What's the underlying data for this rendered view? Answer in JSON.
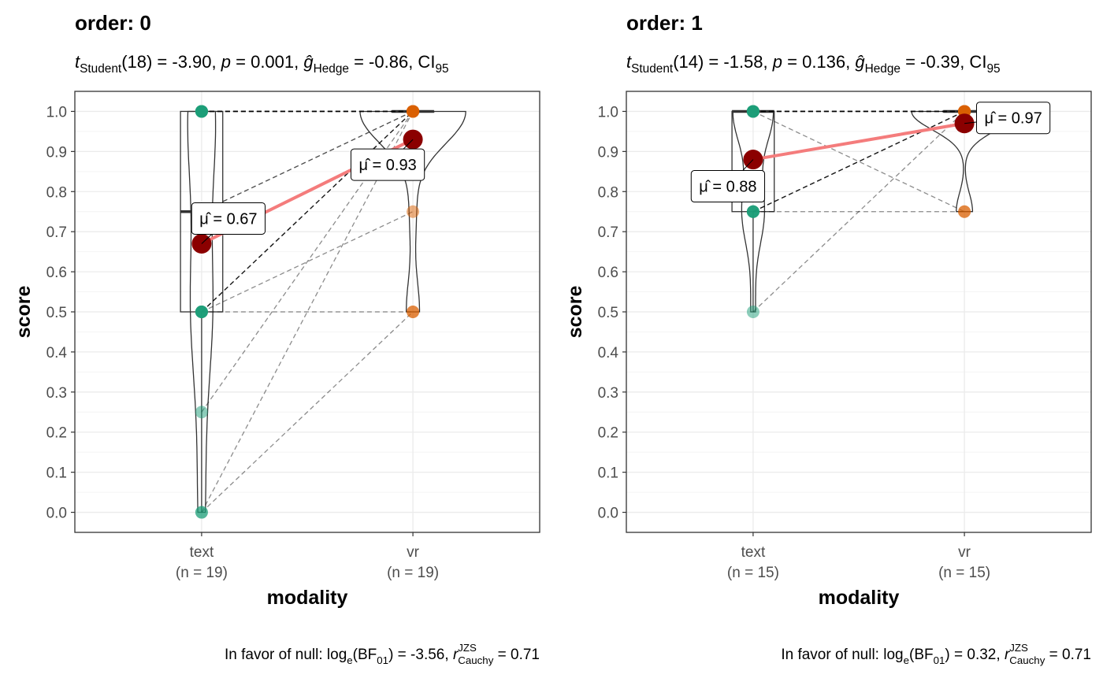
{
  "chart_data": [
    {
      "type": "violin",
      "title": "order: 0",
      "subtitle": [
        {
          "text": "t",
          "style": "italic"
        },
        {
          "text": "Student",
          "style": "sub"
        },
        {
          "text": "(18) = -3.90, "
        },
        {
          "text": "p",
          "style": "italic"
        },
        {
          "text": " = 0.001, "
        },
        {
          "text": "ĝ",
          "style": "italic"
        },
        {
          "text": "Hedge",
          "style": "sub"
        },
        {
          "text": " = -0.86, CI"
        },
        {
          "text": "95",
          "style": "sub"
        }
      ],
      "caption": [
        {
          "text": "In favor of null: log"
        },
        {
          "text": "e",
          "style": "sub"
        },
        {
          "text": "(BF"
        },
        {
          "text": "01",
          "style": "sub"
        },
        {
          "text": ") = -3.56, "
        },
        {
          "text": "r",
          "style": "italic"
        },
        {
          "text": "JZS",
          "style": "sup"
        },
        {
          "text": "Cauchy",
          "style": "sub"
        },
        {
          "text": " = 0.71"
        }
      ],
      "xlabel": "modality",
      "ylabel": "score",
      "categories": [
        "text",
        "vr"
      ],
      "n_labels": [
        "(n = 19)",
        "(n = 19)"
      ],
      "groups": [
        {
          "color": "#1b9e77",
          "values": [
            1,
            1,
            1,
            1,
            1,
            1,
            1,
            1,
            0.75,
            0.75,
            0.5,
            0.5,
            0.5,
            0.5,
            0.5,
            0.5,
            0.25,
            0,
            0
          ]
        },
        {
          "color": "#d95f02",
          "values": [
            1,
            1,
            1,
            1,
            1,
            1,
            1,
            1,
            1,
            1,
            1,
            0.75,
            1,
            1,
            0.5,
            1,
            1,
            1,
            0.5
          ]
        }
      ],
      "means": [
        0.67,
        0.93
      ],
      "mean_labels": [
        "μ̂ = 0.67",
        "μ̂ = 0.93"
      ],
      "mean_color": "#8b0000",
      "mean_line_color": "#f47c7c",
      "ylim": [
        -0.05,
        1.05
      ],
      "yticks": [
        {
          "value": 0,
          "label": "0.0"
        },
        0.1,
        0.2,
        0.3,
        0.4,
        0.5,
        0.6,
        0.7,
        0.8,
        0.9,
        {
          "value": 1,
          "label": "1.0"
        }
      ],
      "grid": true
    },
    {
      "type": "violin",
      "title": "order: 1",
      "subtitle": [
        {
          "text": "t",
          "style": "italic"
        },
        {
          "text": "Student",
          "style": "sub"
        },
        {
          "text": "(14) = -1.58, "
        },
        {
          "text": "p",
          "style": "italic"
        },
        {
          "text": " = 0.136, "
        },
        {
          "text": "ĝ",
          "style": "italic"
        },
        {
          "text": "Hedge",
          "style": "sub"
        },
        {
          "text": " = -0.39, CI"
        },
        {
          "text": "95",
          "style": "sub"
        }
      ],
      "caption": [
        {
          "text": "In favor of null: log"
        },
        {
          "text": "e",
          "style": "sub"
        },
        {
          "text": "(BF"
        },
        {
          "text": "01",
          "style": "sub"
        },
        {
          "text": ") = 0.32, "
        },
        {
          "text": "r",
          "style": "italic"
        },
        {
          "text": "JZS",
          "style": "sup"
        },
        {
          "text": "Cauchy",
          "style": "sub"
        },
        {
          "text": " = 0.71"
        }
      ],
      "xlabel": "modality",
      "ylabel": "score",
      "categories": [
        "text",
        "vr"
      ],
      "n_labels": [
        "(n = 15)",
        "(n = 15)"
      ],
      "groups": [
        {
          "color": "#1b9e77",
          "values": [
            1,
            1,
            1,
            1,
            1,
            1,
            1,
            1,
            1,
            0.75,
            0.75,
            0.75,
            0.75,
            0.75,
            0.5
          ]
        },
        {
          "color": "#d95f02",
          "values": [
            1,
            1,
            1,
            1,
            1,
            1,
            1,
            1,
            0.75,
            1,
            1,
            1,
            1,
            0.75,
            1
          ]
        }
      ],
      "means": [
        0.88,
        0.97
      ],
      "mean_labels": [
        "μ̂ = 0.88",
        "μ̂ = 0.97"
      ],
      "mean_color": "#8b0000",
      "mean_line_color": "#f47c7c",
      "ylim": [
        -0.05,
        1.05
      ],
      "yticks": [
        {
          "value": 0,
          "label": "0.0"
        },
        0.1,
        0.2,
        0.3,
        0.4,
        0.5,
        0.6,
        0.7,
        0.8,
        0.9,
        {
          "value": 1,
          "label": "1.0"
        }
      ],
      "grid": true
    }
  ]
}
